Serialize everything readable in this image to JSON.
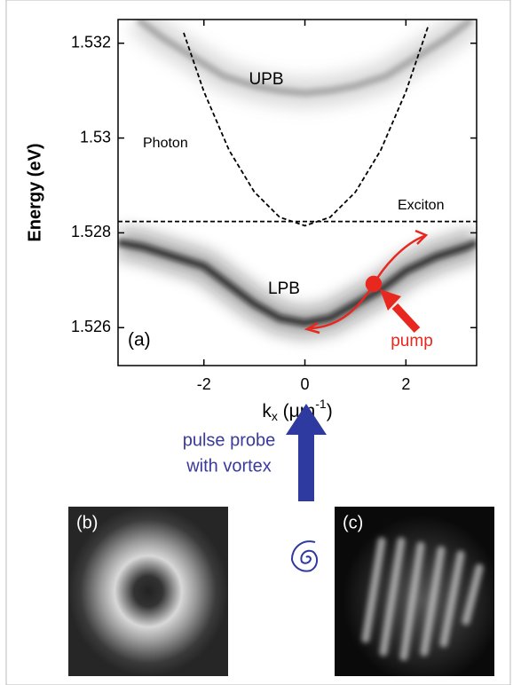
{
  "chart_data": {
    "type": "dispersion",
    "ylabel": "Energy (eV)",
    "xlabel": {
      "base": "k",
      "sub": "x",
      "unit": " (μm",
      "sup": "-1",
      "close": ")"
    },
    "xlim": [
      -3.7,
      3.4
    ],
    "ylim": [
      1.5252,
      1.5325
    ],
    "xticks": [
      -2,
      0,
      2
    ],
    "yticks": [
      1.526,
      1.528,
      1.53,
      1.532
    ],
    "series": [
      {
        "name": "LPB",
        "style": "band",
        "color": "#111111",
        "x": [
          -3.7,
          -3.2,
          -2.6,
          -2,
          -1.5,
          -1,
          -0.5,
          0,
          0.5,
          1,
          1.5,
          2,
          2.6,
          3.2,
          3.4
        ],
        "values": [
          1.5278,
          1.5277,
          1.5275,
          1.5273,
          1.5269,
          1.5265,
          1.5262,
          1.5261,
          1.5262,
          1.5265,
          1.5268,
          1.5272,
          1.5275,
          1.5277,
          1.5278
        ]
      },
      {
        "name": "UPB",
        "style": "band",
        "color": "#9a9a9a",
        "x": [
          -3.3,
          -2.8,
          -2.2,
          -1.6,
          -1,
          -0.5,
          0,
          0.5,
          1,
          1.6,
          2.2,
          2.8,
          3.3
        ],
        "values": [
          1.5325,
          1.5321,
          1.5317,
          1.5313,
          1.5311,
          1.531,
          1.53095,
          1.531,
          1.5311,
          1.5313,
          1.5317,
          1.5321,
          1.5325
        ]
      },
      {
        "name": "Photon",
        "style": "dashed",
        "color": "#000000",
        "x": [
          -2.4,
          -2,
          -1.5,
          -1,
          -0.5,
          0,
          0.5,
          1,
          1.5,
          2,
          2.45
        ],
        "values": [
          1.53222,
          1.53098,
          1.52974,
          1.52886,
          1.52833,
          1.52815,
          1.52833,
          1.52886,
          1.52974,
          1.53098,
          1.53239
        ]
      },
      {
        "name": "Exciton",
        "style": "dashed",
        "color": "#000000",
        "x": [
          -3.7,
          3.4
        ],
        "values": [
          1.52824,
          1.52824
        ]
      }
    ],
    "annotations": {
      "upb": "UPB",
      "photon": "Photon",
      "exciton": "Exciton",
      "lpb": "LPB",
      "panel_a": "(a)",
      "pump": "pump",
      "probe_1": "pulse probe",
      "probe_2": "with vortex",
      "panel_b": "(b)",
      "panel_c": "(c)"
    }
  }
}
